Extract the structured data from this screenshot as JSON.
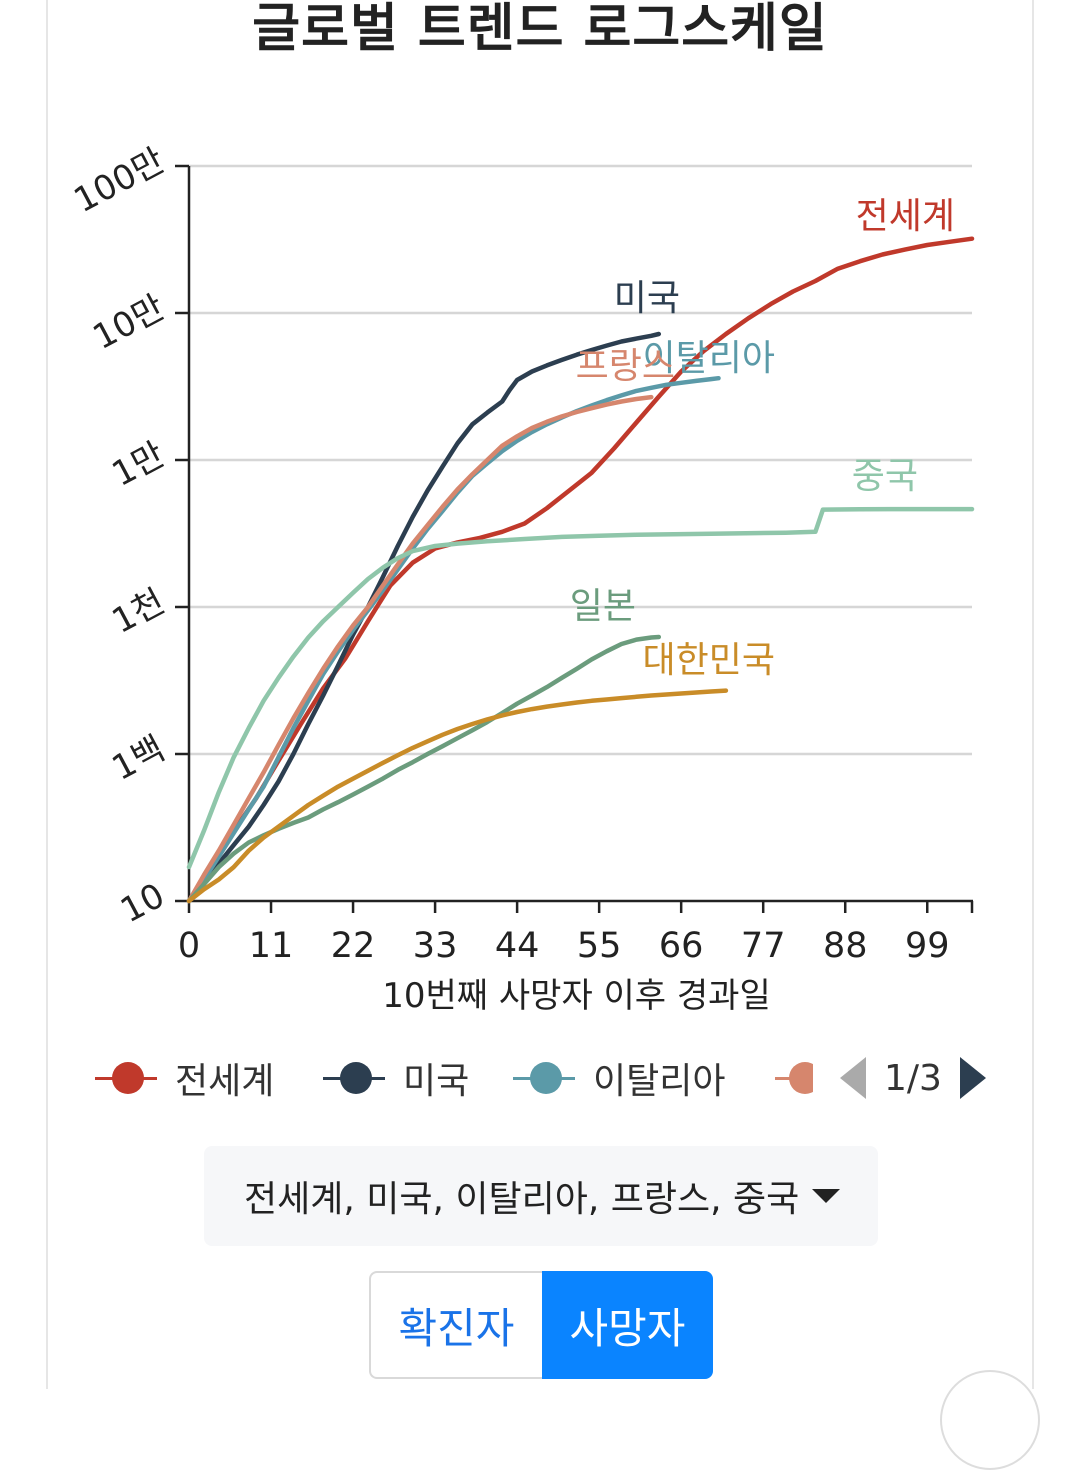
{
  "title": "글로벌 트렌드 로그스케일",
  "chart_data": {
    "type": "line",
    "title": "글로벌 트렌드 로그스케일",
    "xlabel": "10번째 사망자 이후 경과일",
    "ylabel": "",
    "yscale": "log",
    "xlim": [
      0,
      105
    ],
    "ylim": [
      10,
      1000000
    ],
    "x_ticks": [
      0,
      11,
      22,
      33,
      44,
      55,
      66,
      77,
      88,
      99
    ],
    "y_ticks": [
      {
        "value": 10,
        "label": "10"
      },
      {
        "value": 100,
        "label": "1백"
      },
      {
        "value": 1000,
        "label": "1천"
      },
      {
        "value": 10000,
        "label": "1만"
      },
      {
        "value": 100000,
        "label": "10만"
      },
      {
        "value": 1000000,
        "label": "100만"
      }
    ],
    "grid": true,
    "series": [
      {
        "name": "전세계",
        "color": "#c0392b",
        "points": [
          [
            0,
            10
          ],
          [
            3,
            17
          ],
          [
            6,
            30
          ],
          [
            9,
            50
          ],
          [
            12,
            90
          ],
          [
            15,
            160
          ],
          [
            18,
            280
          ],
          [
            21,
            450
          ],
          [
            24,
            800
          ],
          [
            27,
            1400
          ],
          [
            30,
            2000
          ],
          [
            33,
            2500
          ],
          [
            36,
            2750
          ],
          [
            39,
            2950
          ],
          [
            42,
            3250
          ],
          [
            45,
            3700
          ],
          [
            48,
            4700
          ],
          [
            51,
            6200
          ],
          [
            54,
            8200
          ],
          [
            57,
            12000
          ],
          [
            60,
            18000
          ],
          [
            63,
            27000
          ],
          [
            66,
            40000
          ],
          [
            69,
            55000
          ],
          [
            72,
            72000
          ],
          [
            75,
            92000
          ],
          [
            78,
            115000
          ],
          [
            81,
            140000
          ],
          [
            84,
            165000
          ],
          [
            87,
            200000
          ],
          [
            90,
            225000
          ],
          [
            93,
            250000
          ],
          [
            96,
            270000
          ],
          [
            99,
            290000
          ],
          [
            102,
            305000
          ],
          [
            105,
            320000
          ]
        ]
      },
      {
        "name": "미국",
        "color": "#2c3e50",
        "points": [
          [
            0,
            10
          ],
          [
            2,
            14
          ],
          [
            4,
            18
          ],
          [
            6,
            24
          ],
          [
            8,
            32
          ],
          [
            10,
            45
          ],
          [
            12,
            65
          ],
          [
            14,
            100
          ],
          [
            16,
            160
          ],
          [
            18,
            250
          ],
          [
            20,
            400
          ],
          [
            22,
            650
          ],
          [
            24,
            1000
          ],
          [
            26,
            1600
          ],
          [
            28,
            2600
          ],
          [
            30,
            4100
          ],
          [
            32,
            6200
          ],
          [
            34,
            9000
          ],
          [
            36,
            13000
          ],
          [
            38,
            17500
          ],
          [
            40,
            21000
          ],
          [
            42,
            25000
          ],
          [
            43,
            30000
          ],
          [
            44,
            35000
          ],
          [
            46,
            40000
          ],
          [
            48,
            44000
          ],
          [
            50,
            48000
          ],
          [
            52,
            52000
          ],
          [
            54,
            56000
          ],
          [
            56,
            60000
          ],
          [
            58,
            64000
          ],
          [
            60,
            67000
          ],
          [
            62,
            70000
          ],
          [
            63,
            72000
          ]
        ]
      },
      {
        "name": "이탈리아",
        "color": "#5b9aa8",
        "points": [
          [
            0,
            10
          ],
          [
            2,
            14
          ],
          [
            4,
            20
          ],
          [
            6,
            29
          ],
          [
            8,
            42
          ],
          [
            10,
            60
          ],
          [
            12,
            95
          ],
          [
            14,
            150
          ],
          [
            16,
            230
          ],
          [
            18,
            350
          ],
          [
            20,
            500
          ],
          [
            22,
            700
          ],
          [
            24,
            950
          ],
          [
            26,
            1300
          ],
          [
            28,
            1800
          ],
          [
            30,
            2500
          ],
          [
            32,
            3400
          ],
          [
            34,
            4500
          ],
          [
            36,
            6000
          ],
          [
            38,
            7800
          ],
          [
            40,
            9500
          ],
          [
            42,
            11500
          ],
          [
            44,
            13500
          ],
          [
            46,
            15500
          ],
          [
            48,
            17500
          ],
          [
            50,
            19500
          ],
          [
            52,
            21500
          ],
          [
            54,
            23500
          ],
          [
            56,
            25500
          ],
          [
            58,
            27500
          ],
          [
            60,
            29500
          ],
          [
            62,
            31000
          ],
          [
            64,
            32500
          ],
          [
            66,
            33500
          ],
          [
            68,
            34500
          ],
          [
            70,
            35500
          ],
          [
            71,
            36000
          ]
        ]
      },
      {
        "name": "프랑스",
        "color": "#d6866d",
        "points": [
          [
            0,
            10
          ],
          [
            2,
            15
          ],
          [
            4,
            22
          ],
          [
            6,
            33
          ],
          [
            8,
            50
          ],
          [
            10,
            75
          ],
          [
            12,
            115
          ],
          [
            14,
            175
          ],
          [
            16,
            260
          ],
          [
            18,
            380
          ],
          [
            20,
            540
          ],
          [
            22,
            750
          ],
          [
            24,
            1000
          ],
          [
            26,
            1400
          ],
          [
            28,
            1950
          ],
          [
            30,
            2700
          ],
          [
            32,
            3600
          ],
          [
            34,
            4800
          ],
          [
            36,
            6300
          ],
          [
            38,
            8000
          ],
          [
            40,
            10000
          ],
          [
            42,
            12500
          ],
          [
            44,
            14500
          ],
          [
            46,
            16500
          ],
          [
            48,
            18200
          ],
          [
            50,
            19800
          ],
          [
            52,
            21200
          ],
          [
            54,
            22500
          ],
          [
            56,
            23800
          ],
          [
            58,
            25000
          ],
          [
            60,
            26000
          ],
          [
            62,
            26800
          ]
        ]
      },
      {
        "name": "중국",
        "color": "#8fc6aa",
        "points": [
          [
            0,
            17
          ],
          [
            2,
            30
          ],
          [
            4,
            55
          ],
          [
            6,
            95
          ],
          [
            8,
            150
          ],
          [
            10,
            230
          ],
          [
            12,
            330
          ],
          [
            14,
            460
          ],
          [
            16,
            620
          ],
          [
            18,
            800
          ],
          [
            20,
            1000
          ],
          [
            22,
            1250
          ],
          [
            24,
            1550
          ],
          [
            26,
            1850
          ],
          [
            28,
            2150
          ],
          [
            30,
            2400
          ],
          [
            33,
            2600
          ],
          [
            36,
            2700
          ],
          [
            40,
            2800
          ],
          [
            45,
            2900
          ],
          [
            50,
            3000
          ],
          [
            55,
            3050
          ],
          [
            60,
            3100
          ],
          [
            70,
            3150
          ],
          [
            80,
            3200
          ],
          [
            84,
            3250
          ],
          [
            85,
            4600
          ],
          [
            90,
            4630
          ],
          [
            95,
            4633
          ],
          [
            100,
            4634
          ],
          [
            105,
            4634
          ]
        ]
      },
      {
        "name": "일본",
        "color": "#6b9c7d",
        "points": [
          [
            0,
            10
          ],
          [
            2,
            13
          ],
          [
            4,
            17
          ],
          [
            6,
            21
          ],
          [
            8,
            25
          ],
          [
            10,
            28
          ],
          [
            12,
            31
          ],
          [
            14,
            34
          ],
          [
            16,
            37
          ],
          [
            18,
            42
          ],
          [
            20,
            47
          ],
          [
            22,
            53
          ],
          [
            24,
            60
          ],
          [
            26,
            68
          ],
          [
            28,
            78
          ],
          [
            30,
            88
          ],
          [
            32,
            100
          ],
          [
            34,
            113
          ],
          [
            36,
            128
          ],
          [
            38,
            145
          ],
          [
            40,
            165
          ],
          [
            42,
            190
          ],
          [
            44,
            220
          ],
          [
            46,
            250
          ],
          [
            48,
            285
          ],
          [
            50,
            330
          ],
          [
            52,
            380
          ],
          [
            54,
            440
          ],
          [
            56,
            500
          ],
          [
            58,
            560
          ],
          [
            60,
            600
          ],
          [
            62,
            620
          ],
          [
            63,
            625
          ]
        ]
      },
      {
        "name": "대한민국",
        "color": "#c98c28",
        "points": [
          [
            0,
            10
          ],
          [
            2,
            12
          ],
          [
            4,
            14
          ],
          [
            6,
            17
          ],
          [
            8,
            22
          ],
          [
            10,
            27
          ],
          [
            12,
            32
          ],
          [
            14,
            38
          ],
          [
            16,
            45
          ],
          [
            18,
            52
          ],
          [
            20,
            60
          ],
          [
            22,
            68
          ],
          [
            24,
            77
          ],
          [
            26,
            87
          ],
          [
            28,
            98
          ],
          [
            30,
            110
          ],
          [
            32,
            122
          ],
          [
            34,
            135
          ],
          [
            36,
            148
          ],
          [
            38,
            160
          ],
          [
            40,
            172
          ],
          [
            42,
            183
          ],
          [
            44,
            193
          ],
          [
            46,
            202
          ],
          [
            48,
            210
          ],
          [
            50,
            217
          ],
          [
            52,
            224
          ],
          [
            54,
            230
          ],
          [
            56,
            235
          ],
          [
            58,
            240
          ],
          [
            60,
            245
          ],
          [
            62,
            250
          ],
          [
            64,
            254
          ],
          [
            66,
            258
          ],
          [
            68,
            262
          ],
          [
            70,
            266
          ],
          [
            72,
            270
          ]
        ]
      }
    ],
    "annotations": [
      {
        "text": "전세계",
        "color": "#c0392b"
      },
      {
        "text": "미국",
        "color": "#2c3e50"
      },
      {
        "text": "이탈리아",
        "color": "#5b9aa8"
      },
      {
        "text": "프랑스",
        "color": "#d6866d"
      },
      {
        "text": "중국",
        "color": "#8fc6aa"
      },
      {
        "text": "일본",
        "color": "#6b9c7d"
      },
      {
        "text": "대한민국",
        "color": "#c98c28"
      }
    ]
  },
  "legend": {
    "items": [
      {
        "label": "전세계",
        "color": "#c0392b"
      },
      {
        "label": "미국",
        "color": "#2c3e50"
      },
      {
        "label": "이탈리아",
        "color": "#5b9aa8"
      }
    ],
    "page_indicator": "1/3"
  },
  "selector": {
    "value": "전세계, 미국, 이탈리아, 프랑스, 중국"
  },
  "toggle": {
    "left_label": "확진자",
    "right_label": "사망자",
    "active": "사망자"
  }
}
